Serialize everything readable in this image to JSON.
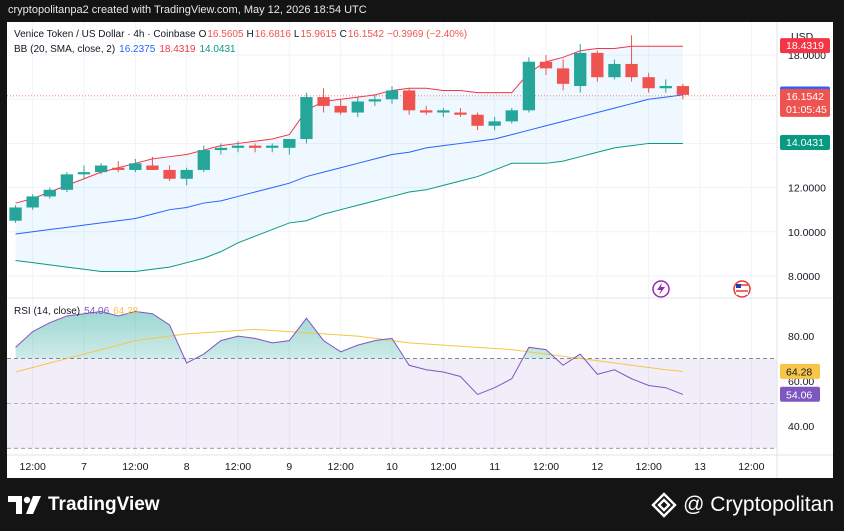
{
  "header": {
    "attribution": "cryptopolitanpa2 created with TradingView.com, May 12, 2026 18:54 UTC"
  },
  "legend": {
    "symbol": "Venice Token / US Dollar · 4h · Coinbase",
    "o_label": "O",
    "o": "16.5605",
    "h_label": "H",
    "h": "16.6816",
    "l_label": "L",
    "l": "15.9615",
    "c_label": "C",
    "c": "16.1542",
    "change": "−0.3969 (−2.40%)",
    "bb_label": "BB (20, SMA, close, 2)",
    "bb_basis": "16.2375",
    "bb_upper": "18.4319",
    "bb_lower": "14.0431",
    "rsi_label": "RSI (14, close)",
    "rsi": "54.06",
    "rsi_ma": "64.28"
  },
  "colors": {
    "up": "#26a69a",
    "down": "#ef5350",
    "upper": "#f23645",
    "basis": "#2962ff",
    "lower": "#089981",
    "rsi": "#7e57c2",
    "rsi_ma": "#f7c548"
  },
  "footer": {
    "tv_brand": "TradingView",
    "cp_brand": "@ Cryptopolitan"
  },
  "chart_data": [
    {
      "type": "candlestick",
      "title": "Venice Token / US Dollar · 4h · Coinbase",
      "currency": "USD",
      "ylim": [
        7.0,
        19.5
      ],
      "yticks": [
        8,
        10,
        12,
        14,
        16,
        18
      ],
      "xticks": [
        {
          "label": "12:00",
          "t": 1.5
        },
        {
          "label": "7",
          "t": 4.5
        },
        {
          "label": "12:00",
          "t": 7.5
        },
        {
          "label": "8",
          "t": 10.5
        },
        {
          "label": "12:00",
          "t": 13.5
        },
        {
          "label": "9",
          "t": 16.5
        },
        {
          "label": "12:00",
          "t": 19.5
        },
        {
          "label": "10",
          "t": 22.5
        },
        {
          "label": "12:00",
          "t": 25.5
        },
        {
          "label": "11",
          "t": 28.5
        },
        {
          "label": "12:00",
          "t": 31.5
        },
        {
          "label": "12",
          "t": 34.5
        },
        {
          "label": "12:00",
          "t": 37.5
        },
        {
          "label": "13",
          "t": 40.5
        },
        {
          "label": "12:00",
          "t": 43.5
        }
      ],
      "x_range": [
        0,
        45
      ],
      "candles": [
        {
          "o": 10.5,
          "h": 11.2,
          "l": 10.4,
          "c": 11.1
        },
        {
          "o": 11.1,
          "h": 11.7,
          "l": 11.0,
          "c": 11.6
        },
        {
          "o": 11.6,
          "h": 12.0,
          "l": 11.5,
          "c": 11.9
        },
        {
          "o": 11.9,
          "h": 12.7,
          "l": 11.8,
          "c": 12.6
        },
        {
          "o": 12.6,
          "h": 13.0,
          "l": 12.4,
          "c": 12.7
        },
        {
          "o": 12.7,
          "h": 13.1,
          "l": 12.6,
          "c": 13.0
        },
        {
          "o": 12.9,
          "h": 13.2,
          "l": 12.7,
          "c": 12.8
        },
        {
          "o": 12.8,
          "h": 13.3,
          "l": 12.7,
          "c": 13.1
        },
        {
          "o": 13.0,
          "h": 13.4,
          "l": 12.8,
          "c": 12.8
        },
        {
          "o": 12.8,
          "h": 13.0,
          "l": 12.3,
          "c": 12.4
        },
        {
          "o": 12.4,
          "h": 12.9,
          "l": 12.1,
          "c": 12.8
        },
        {
          "o": 12.8,
          "h": 13.9,
          "l": 12.7,
          "c": 13.7
        },
        {
          "o": 13.7,
          "h": 14.0,
          "l": 13.5,
          "c": 13.8
        },
        {
          "o": 13.8,
          "h": 14.1,
          "l": 13.6,
          "c": 13.9
        },
        {
          "o": 13.9,
          "h": 14.0,
          "l": 13.6,
          "c": 13.8
        },
        {
          "o": 13.8,
          "h": 14.0,
          "l": 13.6,
          "c": 13.9
        },
        {
          "o": 13.8,
          "h": 14.2,
          "l": 13.5,
          "c": 14.2
        },
        {
          "o": 14.2,
          "h": 16.3,
          "l": 14.0,
          "c": 16.1
        },
        {
          "o": 16.1,
          "h": 16.5,
          "l": 15.4,
          "c": 15.7
        },
        {
          "o": 15.7,
          "h": 16.0,
          "l": 15.3,
          "c": 15.4
        },
        {
          "o": 15.4,
          "h": 16.1,
          "l": 15.2,
          "c": 15.9
        },
        {
          "o": 15.9,
          "h": 16.2,
          "l": 15.7,
          "c": 16.0
        },
        {
          "o": 16.0,
          "h": 16.6,
          "l": 15.8,
          "c": 16.4
        },
        {
          "o": 16.4,
          "h": 16.5,
          "l": 15.3,
          "c": 15.5
        },
        {
          "o": 15.5,
          "h": 15.7,
          "l": 15.3,
          "c": 15.4
        },
        {
          "o": 15.4,
          "h": 15.6,
          "l": 15.2,
          "c": 15.5
        },
        {
          "o": 15.4,
          "h": 15.6,
          "l": 15.2,
          "c": 15.3
        },
        {
          "o": 15.3,
          "h": 15.4,
          "l": 14.6,
          "c": 14.8
        },
        {
          "o": 14.8,
          "h": 15.2,
          "l": 14.6,
          "c": 15.0
        },
        {
          "o": 15.0,
          "h": 15.6,
          "l": 14.9,
          "c": 15.5
        },
        {
          "o": 15.5,
          "h": 17.9,
          "l": 15.4,
          "c": 17.7
        },
        {
          "o": 17.7,
          "h": 18.0,
          "l": 17.1,
          "c": 17.4
        },
        {
          "o": 17.4,
          "h": 17.8,
          "l": 16.4,
          "c": 16.7
        },
        {
          "o": 16.6,
          "h": 18.5,
          "l": 16.3,
          "c": 18.1
        },
        {
          "o": 18.1,
          "h": 18.2,
          "l": 16.8,
          "c": 17.0
        },
        {
          "o": 17.0,
          "h": 17.8,
          "l": 16.9,
          "c": 17.6
        },
        {
          "o": 17.6,
          "h": 18.9,
          "l": 16.8,
          "c": 17.0
        },
        {
          "o": 17.0,
          "h": 17.2,
          "l": 16.3,
          "c": 16.5
        },
        {
          "o": 16.5,
          "h": 16.9,
          "l": 16.3,
          "c": 16.6
        },
        {
          "o": 16.6,
          "h": 16.7,
          "l": 16.0,
          "c": 16.2
        }
      ],
      "bb_upper": [
        11.3,
        11.5,
        11.8,
        12.1,
        12.4,
        12.7,
        12.9,
        13.1,
        13.3,
        13.4,
        13.5,
        13.7,
        13.9,
        14.0,
        14.1,
        14.2,
        14.4,
        15.5,
        15.9,
        16.0,
        16.1,
        16.2,
        16.4,
        16.5,
        16.5,
        16.4,
        16.4,
        16.3,
        16.3,
        16.3,
        17.2,
        17.7,
        17.9,
        18.2,
        18.3,
        18.3,
        18.4,
        18.4,
        18.4,
        18.4
      ],
      "bb_basis": [
        9.9,
        10.0,
        10.1,
        10.2,
        10.3,
        10.4,
        10.5,
        10.6,
        10.8,
        11.0,
        11.1,
        11.3,
        11.4,
        11.6,
        11.8,
        12.0,
        12.2,
        12.5,
        12.7,
        12.9,
        13.1,
        13.3,
        13.5,
        13.6,
        13.8,
        13.9,
        14.0,
        14.1,
        14.2,
        14.4,
        14.6,
        14.8,
        15.0,
        15.2,
        15.4,
        15.6,
        15.8,
        16.0,
        16.1,
        16.2
      ],
      "bb_lower": [
        8.7,
        8.6,
        8.5,
        8.4,
        8.3,
        8.2,
        8.2,
        8.2,
        8.3,
        8.4,
        8.6,
        8.8,
        9.1,
        9.5,
        9.8,
        10.1,
        10.4,
        10.5,
        10.8,
        11.0,
        11.2,
        11.4,
        11.6,
        11.8,
        11.9,
        12.1,
        12.3,
        12.5,
        12.8,
        13.1,
        13.1,
        13.1,
        13.2,
        13.4,
        13.6,
        13.8,
        13.9,
        14.0,
        14.0,
        14.0
      ],
      "price_labels": [
        {
          "name": "bb-upper",
          "value": 18.4319,
          "text": "18.4319"
        },
        {
          "name": "bb-basis",
          "value": 16.2375,
          "text": "16.2375"
        },
        {
          "name": "last-price",
          "value": 16.1542,
          "text": "16.1542",
          "countdown": "01:05:45"
        },
        {
          "name": "bb-lower",
          "value": 14.0431,
          "text": "14.0431"
        }
      ]
    },
    {
      "type": "line",
      "title": "RSI (14, close)",
      "ylim": [
        27,
        97
      ],
      "yticks": [
        40,
        60,
        80
      ],
      "band": [
        30,
        70
      ],
      "midline": 50,
      "series": [
        {
          "name": "RSI",
          "values": [
            75,
            82,
            86,
            89,
            90,
            91,
            89,
            91,
            90,
            85,
            68,
            72,
            78,
            80,
            79,
            77,
            78,
            88,
            78,
            73,
            76,
            78,
            79,
            67,
            65,
            64,
            62,
            54,
            57,
            61,
            75,
            74,
            67,
            72,
            63,
            65,
            61,
            58,
            57,
            54
          ]
        },
        {
          "name": "RSI-based MA",
          "values": [
            64,
            66,
            68,
            70,
            72,
            74,
            76,
            78,
            79,
            80,
            81,
            81.5,
            82,
            82.5,
            83,
            82.5,
            82,
            81.5,
            81,
            80.5,
            80,
            79,
            78,
            77,
            76.5,
            76,
            75.5,
            75,
            74.5,
            74,
            73,
            72,
            71,
            70,
            69,
            68,
            67,
            66,
            65,
            64.28
          ]
        }
      ],
      "value_labels": [
        {
          "name": "rsi-ma",
          "value": 64.28,
          "text": "64.28"
        },
        {
          "name": "rsi",
          "value": 54.06,
          "text": "54.06"
        }
      ]
    }
  ]
}
